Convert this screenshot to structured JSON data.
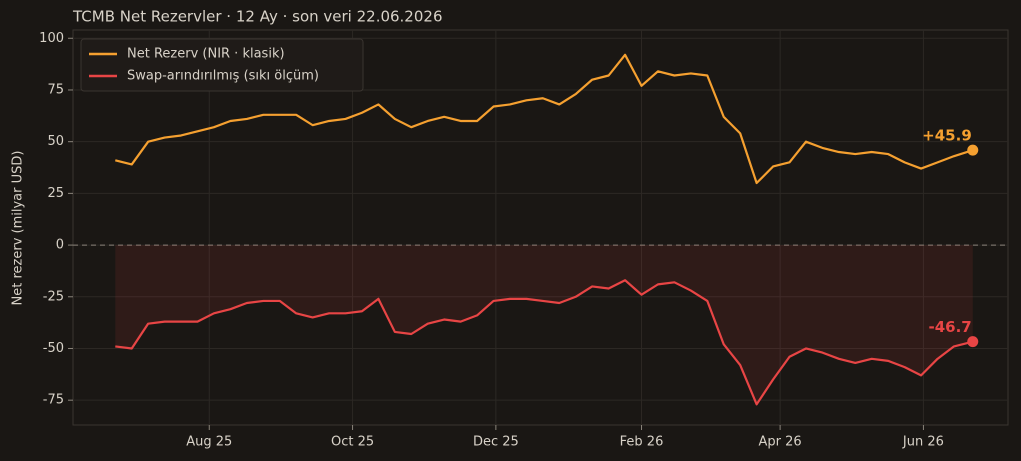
{
  "chart_data": {
    "type": "line",
    "title": "TCMB Net Rezervler · 12 Ay · son veri 22.06.2026",
    "ylabel": "Net rezerv (milyar USD)",
    "x": [
      "2025-06-22",
      "2025-06-29",
      "2025-07-06",
      "2025-07-13",
      "2025-07-20",
      "2025-07-27",
      "2025-08-03",
      "2025-08-10",
      "2025-08-17",
      "2025-08-24",
      "2025-08-31",
      "2025-09-07",
      "2025-09-14",
      "2025-09-21",
      "2025-09-28",
      "2025-10-05",
      "2025-10-12",
      "2025-10-19",
      "2025-10-26",
      "2025-11-02",
      "2025-11-09",
      "2025-11-16",
      "2025-11-23",
      "2025-11-30",
      "2025-12-07",
      "2025-12-14",
      "2025-12-21",
      "2025-12-28",
      "2026-01-04",
      "2026-01-11",
      "2026-01-18",
      "2026-01-25",
      "2026-02-01",
      "2026-02-08",
      "2026-02-15",
      "2026-02-22",
      "2026-03-01",
      "2026-03-08",
      "2026-03-15",
      "2026-03-22",
      "2026-03-29",
      "2026-04-05",
      "2026-04-12",
      "2026-04-19",
      "2026-04-26",
      "2026-05-03",
      "2026-05-10",
      "2026-05-17",
      "2026-05-24",
      "2026-05-31",
      "2026-06-07",
      "2026-06-14",
      "2026-06-22"
    ],
    "series": [
      {
        "name": "Net Rezerv (NIR · klasik)",
        "color": "#f5a030",
        "values": [
          41,
          39,
          50,
          52,
          53,
          55,
          57,
          60,
          61,
          63,
          63,
          63,
          58,
          60,
          61,
          64,
          68,
          61,
          57,
          60,
          62,
          60,
          60,
          67,
          68,
          70,
          71,
          68,
          73,
          80,
          82,
          92,
          77,
          84,
          82,
          83,
          82,
          62,
          54,
          30,
          38,
          40,
          50,
          47,
          45,
          44,
          45,
          44,
          40,
          37,
          40,
          43,
          45.9
        ],
        "value_labels": [
          null,
          null,
          null,
          null,
          null,
          null,
          null,
          null,
          null,
          null,
          null,
          null,
          null,
          null,
          null,
          null,
          null,
          null,
          null,
          null,
          null,
          null,
          null,
          null,
          null,
          null,
          null,
          null,
          null,
          null,
          null,
          null,
          null,
          null,
          null,
          null,
          null,
          null,
          null,
          null,
          null,
          null,
          null,
          null,
          null,
          null,
          null,
          null,
          null,
          null,
          null,
          null,
          "+45.9"
        ]
      },
      {
        "name": "Swap-arındırılmış (sıkı ölçüm)",
        "color": "#e84545",
        "fill": true,
        "values": [
          -49,
          -50,
          -38,
          -37,
          -37,
          -37,
          -33,
          -31,
          -28,
          -27,
          -27,
          -33,
          -35,
          -33,
          -33,
          -32,
          -26,
          -42,
          -43,
          -38,
          -36,
          -37,
          -34,
          -27,
          -26,
          -26,
          -27,
          -28,
          -25,
          -20,
          -21,
          -17,
          -24,
          -19,
          -18,
          -22,
          -27,
          -48,
          -58,
          -77,
          -65,
          -54,
          -50,
          -52,
          -55,
          -57,
          -55,
          -56,
          -59,
          -63,
          -55,
          -49,
          -46.7
        ],
        "value_labels": [
          null,
          null,
          null,
          null,
          null,
          null,
          null,
          null,
          null,
          null,
          null,
          null,
          null,
          null,
          null,
          null,
          null,
          null,
          null,
          null,
          null,
          null,
          null,
          null,
          null,
          null,
          null,
          null,
          null,
          null,
          null,
          null,
          null,
          null,
          null,
          null,
          null,
          null,
          null,
          null,
          null,
          null,
          null,
          null,
          null,
          null,
          null,
          null,
          null,
          null,
          null,
          null,
          "-46.7"
        ]
      }
    ],
    "xlim": [
      "2025-06-04",
      "2026-07-07"
    ],
    "xticks": [
      {
        "value": "2025-08-01",
        "label": "Aug 25"
      },
      {
        "value": "2025-10-01",
        "label": "Oct 25"
      },
      {
        "value": "2025-12-01",
        "label": "Dec 25"
      },
      {
        "value": "2026-02-01",
        "label": "Feb 26"
      },
      {
        "value": "2026-04-01",
        "label": "Apr 26"
      },
      {
        "value": "2026-06-01",
        "label": "Jun 26"
      }
    ],
    "ylim": [
      -87,
      104
    ],
    "yticks": [
      -75,
      -50,
      -25,
      0,
      25,
      50,
      75,
      100
    ],
    "grid": true,
    "zero_line": true,
    "legend": "upper left"
  }
}
